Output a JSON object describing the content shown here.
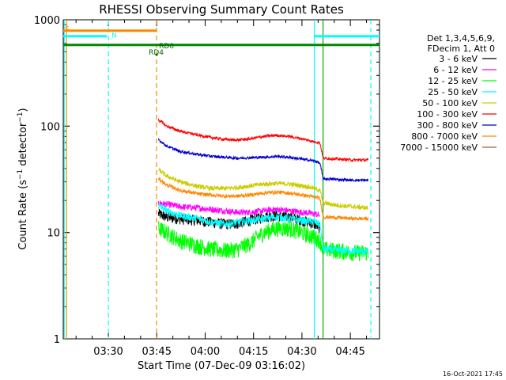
{
  "chart_data": {
    "type": "line",
    "title": "RHESSI Observing Summary Count Rates",
    "xlabel": "Start Time (07-Dec-09 03:16:02)",
    "ylabel": "Count Rate (s^-1 detector^-1)",
    "ylabel_parts": {
      "a": "Count Rate (s",
      "sup1": "−1",
      "b": " detector",
      "sup2": "−1",
      "c": ")"
    },
    "x_unit": "minutes after 03:16:02",
    "xlim": [
      0,
      98
    ],
    "ylim": [
      1,
      1000
    ],
    "yscale": "log",
    "grid": false,
    "x_ticks": [
      {
        "value": 13.97,
        "label": "03:30"
      },
      {
        "value": 28.97,
        "label": "03:45"
      },
      {
        "value": 43.97,
        "label": "04:00"
      },
      {
        "value": 58.97,
        "label": "04:15"
      },
      {
        "value": 73.97,
        "label": "04:30"
      },
      {
        "value": 88.97,
        "label": "04:45"
      }
    ],
    "y_ticks": [
      {
        "value": 1,
        "label": "1"
      },
      {
        "value": 10,
        "label": "10"
      },
      {
        "value": 100,
        "label": "100"
      },
      {
        "value": 1000,
        "label": "1000"
      }
    ],
    "legend": {
      "position": "right",
      "header": [
        "Det 1,3,4,5,6,9,",
        "FDecim 1, Att 0"
      ]
    },
    "series": [
      {
        "name": "3 - 6 keV",
        "color": "#000000",
        "x": [
          29.5,
          32,
          36,
          42,
          46,
          50,
          54,
          58,
          62,
          66,
          70,
          74,
          78,
          79.5
        ],
        "values": [
          15,
          14,
          13.5,
          13,
          12.5,
          12,
          12.2,
          13,
          14,
          14.5,
          14,
          13,
          12,
          11
        ]
      },
      {
        "name": "6 - 12 keV",
        "color": "#ff00ff",
        "x": [
          29.5,
          32,
          36,
          42,
          46,
          50,
          54,
          58,
          62,
          66,
          70,
          74,
          78,
          79.5
        ],
        "values": [
          19,
          18.5,
          17.5,
          17,
          16.5,
          16,
          15.5,
          15.5,
          16,
          16.5,
          16,
          15.5,
          15,
          14.5
        ]
      },
      {
        "name": "12 - 25 keV",
        "color": "#00ff00",
        "x": [
          29.5,
          32,
          36,
          42,
          46,
          50,
          54,
          58,
          62,
          66,
          70,
          74,
          78,
          79.5,
          80.5,
          85,
          90,
          94.5
        ],
        "values": [
          11,
          10,
          8.5,
          7.5,
          7,
          6.8,
          7,
          8,
          10,
          11,
          11,
          10,
          9,
          8.5,
          7,
          6.8,
          6.5,
          6.5
        ]
      },
      {
        "name": "25 - 50 keV",
        "color": "#00ffff",
        "x": [
          29.5,
          32,
          36,
          42,
          46,
          50,
          54,
          58,
          62,
          66,
          70,
          74,
          78,
          79.5,
          80.5,
          85,
          90,
          94.5
        ],
        "values": [
          18,
          16,
          14.5,
          13.5,
          12.5,
          12,
          12.5,
          13,
          13.5,
          14,
          13.5,
          13,
          12.5,
          12,
          7,
          6.8,
          6.7,
          6.6
        ]
      },
      {
        "name": "50 - 100 keV",
        "color": "#cccc00",
        "x": [
          29.5,
          32,
          36,
          42,
          46,
          50,
          54,
          58,
          62,
          66,
          70,
          74,
          78,
          79.5,
          80.5,
          85,
          90,
          94.5
        ],
        "values": [
          39,
          34,
          30,
          27,
          26,
          26,
          26.5,
          27.5,
          28.5,
          29,
          28.5,
          27.5,
          26,
          25,
          19,
          18,
          17.5,
          17
        ]
      },
      {
        "name": "100 - 300 keV",
        "color": "#ff0000",
        "x": [
          29.5,
          32,
          36,
          42,
          46,
          50,
          54,
          58,
          62,
          66,
          70,
          74,
          78,
          79.5,
          80.5,
          85,
          90,
          94.5
        ],
        "values": [
          115,
          100,
          90,
          82,
          78,
          75,
          74,
          76,
          80,
          82,
          80,
          76,
          71,
          70,
          50,
          49,
          48,
          48
        ]
      },
      {
        "name": "300 - 800 keV",
        "color": "#0000cc",
        "x": [
          29.5,
          32,
          36,
          42,
          46,
          50,
          54,
          58,
          62,
          66,
          70,
          74,
          78,
          79.5,
          80.5,
          85,
          90,
          94.5
        ],
        "values": [
          75,
          65,
          58,
          54,
          52,
          51,
          50,
          50.5,
          51,
          52,
          51,
          49,
          47,
          45,
          32,
          31.5,
          31,
          31
        ]
      },
      {
        "name": "800 - 7000 keV",
        "color": "#ff8800",
        "x": [
          29.5,
          32,
          36,
          42,
          46,
          50,
          54,
          58,
          62,
          66,
          70,
          74,
          78,
          79.5,
          80.5,
          85,
          90,
          94.5
        ],
        "values": [
          32,
          28,
          25,
          23,
          22.5,
          22,
          22,
          22.5,
          23.5,
          24,
          23.5,
          22.5,
          21.5,
          21,
          14,
          13.8,
          13.5,
          13.5
        ]
      },
      {
        "name": "7000 - 15000 keV",
        "color": "#996633",
        "x": [],
        "values": []
      }
    ],
    "annotations": [
      {
        "text": "S",
        "x": 0,
        "y": 780,
        "color": "#ff8800"
      },
      {
        "text": "N",
        "x": 14.5,
        "y": 680,
        "color": "#00ffff"
      },
      {
        "text": "RD0",
        "x": 29.2,
        "y": 540,
        "color": "#006600"
      },
      {
        "text": "RD4",
        "x": 26,
        "y": 470,
        "color": "#006600"
      }
    ],
    "flag_bars": [
      {
        "label": "S",
        "color": "#ff8800",
        "y": 790,
        "x0": 0,
        "x1": 28.97
      },
      {
        "label": "N",
        "color": "#00ffff",
        "y": 700,
        "x0": 0,
        "x1": 13.5
      },
      {
        "label": "N",
        "color": "#00ffff",
        "y": 700,
        "x0": 77.8,
        "x1": 98
      },
      {
        "label": "RD",
        "color": "#008800",
        "y": 580,
        "x0": 0,
        "x1": 98
      }
    ],
    "vlines": [
      {
        "x": 0.3,
        "color": "#00ffff",
        "dash": false
      },
      {
        "x": 1.0,
        "color": "#ff8800",
        "dash": false
      },
      {
        "x": 14.0,
        "color": "#00ffff",
        "dash": true
      },
      {
        "x": 28.9,
        "color": "#ff8800",
        "dash": true
      },
      {
        "x": 77.8,
        "color": "#00ffff",
        "dash": false
      },
      {
        "x": 80.5,
        "color": "#00aa00",
        "dash": false
      },
      {
        "x": 95.3,
        "color": "#00ffff",
        "dash": true
      }
    ]
  },
  "footer": {
    "timestamp": "16-Oct-2021 17:45"
  }
}
